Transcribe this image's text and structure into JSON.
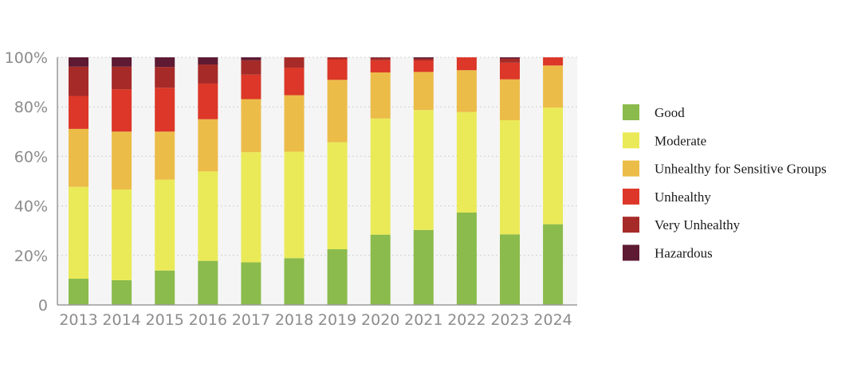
{
  "chart_data": {
    "type": "bar",
    "stacked": true,
    "title": "",
    "xlabel": "",
    "ylabel": "",
    "ylim": [
      0,
      100
    ],
    "yticks": [
      {
        "value": 0,
        "label": "0"
      },
      {
        "value": 20,
        "label": "20%"
      },
      {
        "value": 40,
        "label": "40%"
      },
      {
        "value": 60,
        "label": "60%"
      },
      {
        "value": 80,
        "label": "80%"
      },
      {
        "value": 100,
        "label": "100%"
      }
    ],
    "grid": "horizontal dotted",
    "legend_position": "right",
    "categories": [
      "2013",
      "2014",
      "2015",
      "2016",
      "2017",
      "2018",
      "2019",
      "2020",
      "2021",
      "2022",
      "2023",
      "2024"
    ],
    "series": [
      {
        "name": "Good",
        "color": "#8bbb4c",
        "values": [
          10.6,
          10.0,
          13.9,
          17.8,
          17.2,
          18.9,
          22.5,
          28.4,
          30.3,
          37.3,
          28.5,
          32.6
        ]
      },
      {
        "name": "Moderate",
        "color": "#eaea58",
        "values": [
          37.1,
          36.6,
          36.7,
          36.1,
          44.5,
          43.0,
          43.2,
          46.9,
          48.4,
          40.6,
          46.1,
          47.1
        ]
      },
      {
        "name": "Unhealthy for Sensitive Groups",
        "color": "#ecbc48",
        "values": [
          23.4,
          23.4,
          19.4,
          21.1,
          21.4,
          22.8,
          25.2,
          18.6,
          15.4,
          16.9,
          16.5,
          17.0
        ]
      },
      {
        "name": "Unhealthy",
        "color": "#dc3728",
        "values": [
          13.3,
          17.1,
          17.7,
          14.4,
          9.9,
          11.1,
          8.3,
          4.9,
          4.6,
          5.2,
          6.7,
          3.3
        ]
      },
      {
        "name": "Very Unhealthy",
        "color": "#a62b28",
        "values": [
          11.8,
          9.1,
          8.4,
          7.7,
          5.8,
          4.2,
          0.8,
          1.0,
          0.8,
          0.0,
          1.7,
          0.0
        ]
      },
      {
        "name": "Hazardous",
        "color": "#5e1a33",
        "values": [
          3.8,
          3.8,
          3.9,
          2.9,
          1.2,
          0.0,
          0.0,
          0.2,
          0.5,
          0.0,
          0.5,
          0.0
        ]
      }
    ]
  }
}
